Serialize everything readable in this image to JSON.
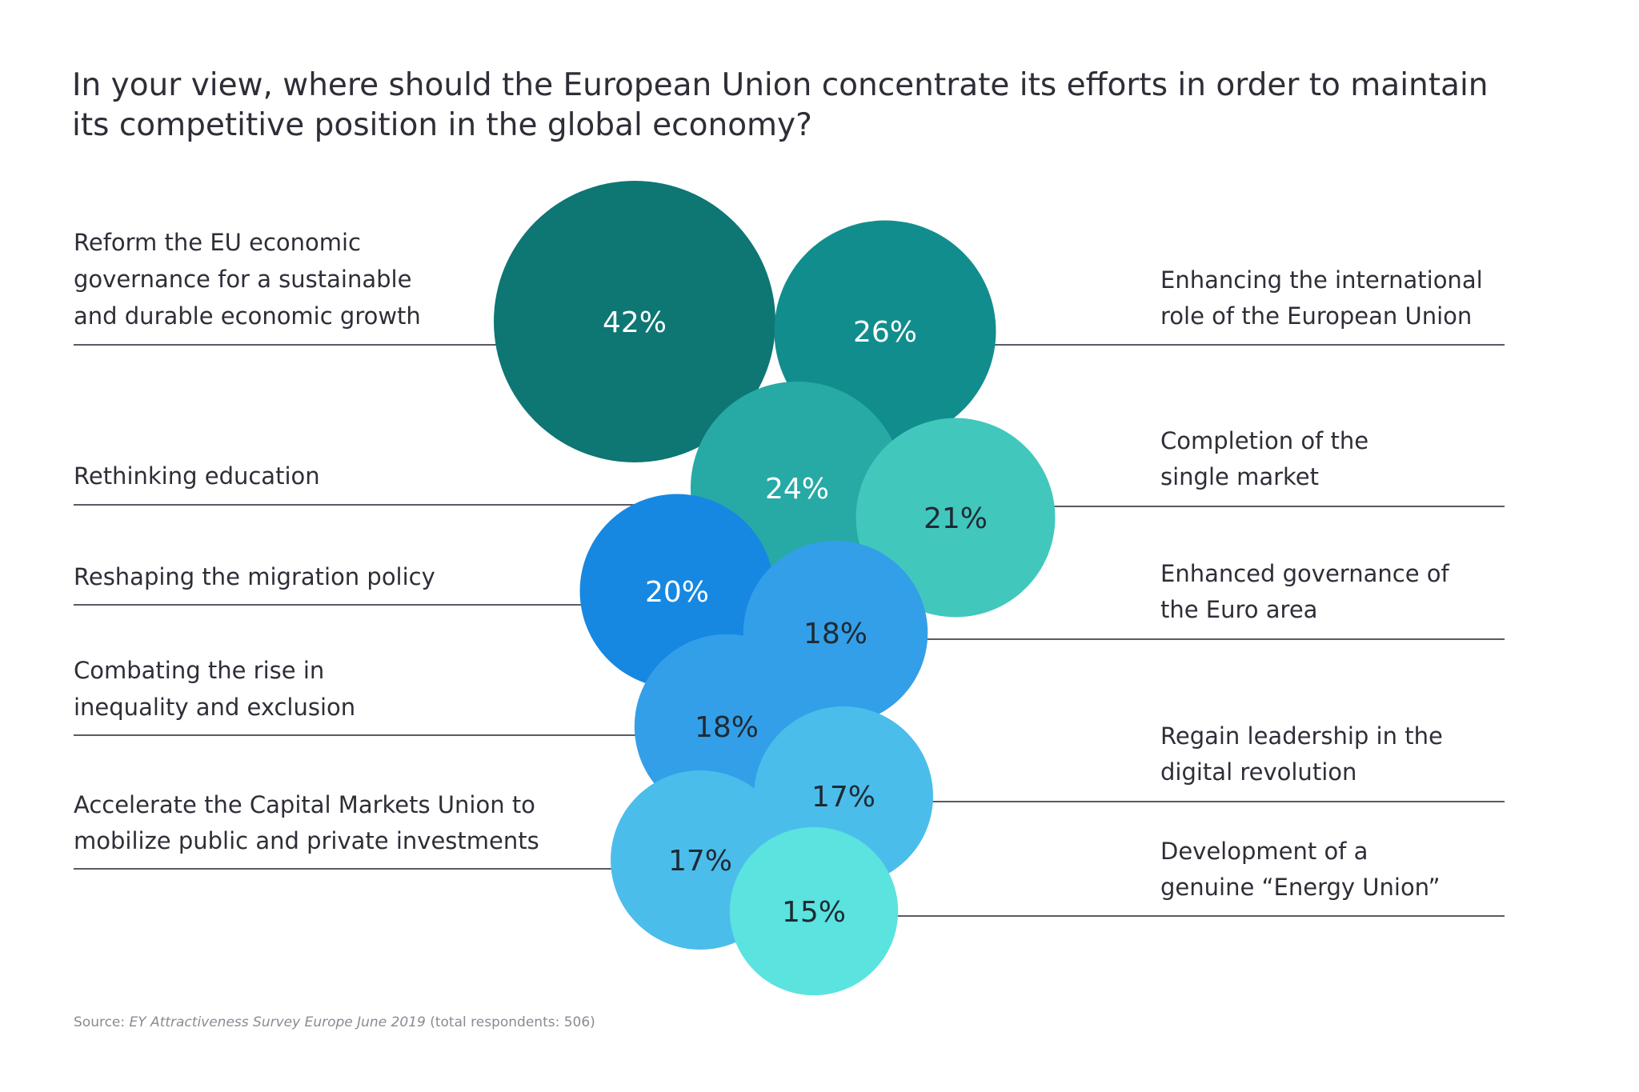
{
  "chart_data": {
    "type": "bubble",
    "title": "In your view, where should the European Union concentrate its efforts in order to maintain its competitive position in the global economy?",
    "unit": "%",
    "items": [
      {
        "label": "Reform the EU economic governance for a sustainable and durable economic growth",
        "value": 42,
        "value_label": "42%",
        "side": "left",
        "color": "#0e7673",
        "text_color": "#ffffff"
      },
      {
        "label": "Enhancing the international role of the European Union",
        "value": 26,
        "value_label": "26%",
        "side": "right",
        "color": "#128d8d",
        "text_color": "#ffffff"
      },
      {
        "label": "Rethinking education",
        "value": 24,
        "value_label": "24%",
        "side": "left",
        "color": "#27aaa5",
        "text_color": "#ffffff"
      },
      {
        "label": "Completion of the single market",
        "value": 21,
        "value_label": "21%",
        "side": "right",
        "color": "#42c7bd",
        "text_color": "#1f2a33"
      },
      {
        "label": "Reshaping the migration policy",
        "value": 20,
        "value_label": "20%",
        "side": "left",
        "color": "#1688e2",
        "text_color": "#ffffff"
      },
      {
        "label": "Enhanced governance of the Euro area",
        "value": 18,
        "value_label": "18%",
        "side": "right",
        "color": "#339fe8",
        "text_color": "#1f2a33"
      },
      {
        "label": "Combating the rise in inequality and exclusion",
        "value": 18,
        "value_label": "18%",
        "side": "left",
        "color": "#339fe8",
        "text_color": "#1f2a33"
      },
      {
        "label": "Regain leadership in the digital revolution",
        "value": 17,
        "value_label": "17%",
        "side": "right",
        "color": "#4bbdeb",
        "text_color": "#1f2a33"
      },
      {
        "label": "Accelerate the Capital Markets Union to mobilize public and private investments",
        "value": 17,
        "value_label": "17%",
        "side": "left",
        "color": "#4bbdeb",
        "text_color": "#1f2a33"
      },
      {
        "label": "Development of a genuine “Energy Union”",
        "value": 15,
        "value_label": "15%",
        "side": "right",
        "color": "#5ae3df",
        "text_color": "#1f2a33"
      }
    ]
  },
  "source": {
    "prefix": "Source: ",
    "name": "EY Attractiveness Survey Europe June 2019",
    "suffix": " (total respondents: 506)"
  }
}
